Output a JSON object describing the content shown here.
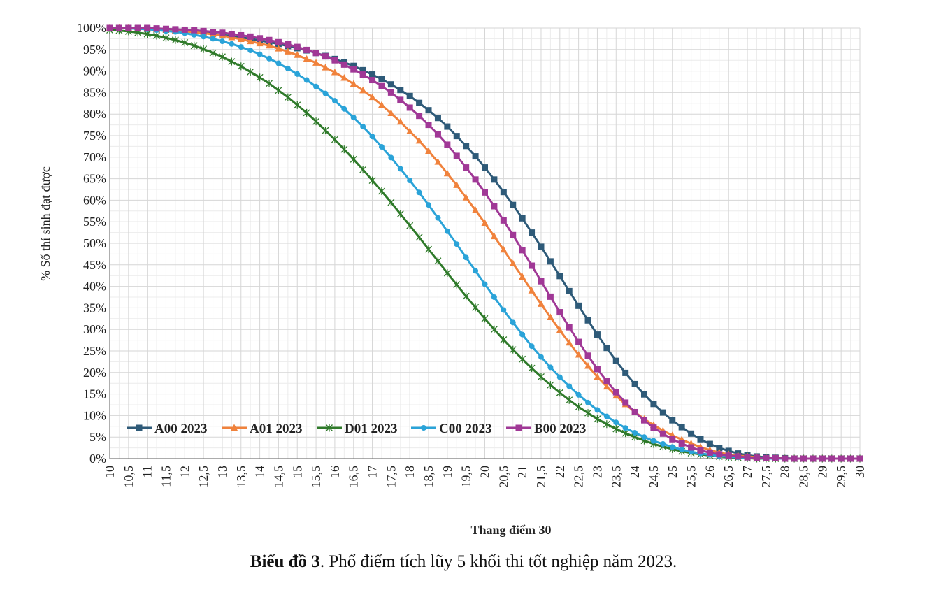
{
  "chart_data": {
    "type": "line",
    "title": "",
    "xlabel": "Thang điểm 30",
    "ylabel": "% Số thí sinh đạt được",
    "x": [
      10,
      10.25,
      10.5,
      10.75,
      11,
      11.25,
      11.5,
      11.75,
      12,
      12.25,
      12.5,
      12.75,
      13,
      13.25,
      13.5,
      13.75,
      14,
      14.25,
      14.5,
      14.75,
      15,
      15.25,
      15.5,
      15.75,
      16,
      16.25,
      16.5,
      16.75,
      17,
      17.25,
      17.5,
      17.75,
      18,
      18.25,
      18.5,
      18.75,
      19,
      19.25,
      19.5,
      19.75,
      20,
      20.25,
      20.5,
      20.75,
      21,
      21.25,
      21.5,
      21.75,
      22,
      22.25,
      22.5,
      22.75,
      23,
      23.25,
      23.5,
      23.75,
      24,
      24.25,
      24.5,
      24.75,
      25,
      25.25,
      25.5,
      25.75,
      26,
      26.25,
      26.5,
      26.75,
      27,
      27.25,
      27.5,
      27.75,
      28,
      28.25,
      28.5,
      28.75,
      29,
      29.25,
      29.5,
      29.75,
      30
    ],
    "x_tick_labels": [
      "10",
      "10,5",
      "11",
      "11,5",
      "12",
      "12,5",
      "13",
      "13,5",
      "14",
      "14,5",
      "15",
      "15,5",
      "16",
      "16,5",
      "17",
      "17,5",
      "18",
      "18,5",
      "19",
      "19,5",
      "20",
      "20,5",
      "21",
      "21,5",
      "22",
      "22,5",
      "23",
      "23,5",
      "24",
      "24,5",
      "25",
      "25,5",
      "26",
      "26,5",
      "27",
      "27,5",
      "28",
      "28,5",
      "29",
      "29,5",
      "30"
    ],
    "y_tick_labels": [
      "0%",
      "5%",
      "10%",
      "15%",
      "20%",
      "25%",
      "30%",
      "35%",
      "40%",
      "45%",
      "50%",
      "55%",
      "60%",
      "65%",
      "70%",
      "75%",
      "80%",
      "85%",
      "90%",
      "95%",
      "100%"
    ],
    "xlim": [
      10,
      30
    ],
    "ylim": [
      0,
      100
    ],
    "grid": true,
    "legend_position": "bottom-left",
    "series": [
      {
        "name": "A00 2023",
        "color": "#2e5a78",
        "marker": "square",
        "values": [
          100,
          100,
          100,
          99.9,
          99.8,
          99.7,
          99.6,
          99.4,
          99.3,
          99.1,
          98.9,
          98.6,
          98.4,
          98.1,
          97.8,
          97.5,
          97.1,
          96.7,
          96.3,
          95.8,
          95.3,
          94.8,
          94.2,
          93.5,
          92.8,
          92.0,
          91.2,
          90.2,
          89.2,
          88.1,
          86.9,
          85.6,
          84.2,
          82.6,
          80.9,
          79.1,
          77.1,
          74.9,
          72.6,
          70.2,
          67.6,
          64.8,
          61.9,
          58.9,
          55.8,
          52.5,
          49.2,
          45.8,
          42.4,
          38.9,
          35.5,
          32.1,
          28.8,
          25.7,
          22.7,
          19.9,
          17.3,
          14.9,
          12.7,
          10.7,
          8.9,
          7.3,
          5.8,
          4.5,
          3.4,
          2.5,
          1.8,
          1.2,
          0.8,
          0.5,
          0.3,
          0.2,
          0.1,
          0,
          0,
          0,
          0,
          0,
          0,
          0,
          0
        ]
      },
      {
        "name": "A01 2023",
        "color": "#f0823c",
        "marker": "triangle",
        "values": [
          100,
          100,
          100,
          99.9,
          99.8,
          99.7,
          99.6,
          99.4,
          99.2,
          99.0,
          98.8,
          98.5,
          98.2,
          97.8,
          97.4,
          96.9,
          96.4,
          95.9,
          95.2,
          94.5,
          93.7,
          92.8,
          91.9,
          90.8,
          89.7,
          88.4,
          87.0,
          85.5,
          83.9,
          82.1,
          80.2,
          78.2,
          76.0,
          73.8,
          71.4,
          68.9,
          66.2,
          63.5,
          60.6,
          57.7,
          54.7,
          51.6,
          48.5,
          45.3,
          42.2,
          39.0,
          35.9,
          32.8,
          29.8,
          26.9,
          24.1,
          21.5,
          19.0,
          16.7,
          14.6,
          12.6,
          10.8,
          9.2,
          7.8,
          6.5,
          5.4,
          4.4,
          3.5,
          2.7,
          2.0,
          1.4,
          1.0,
          0.7,
          0.5,
          0.3,
          0.2,
          0.1,
          0,
          0,
          0,
          0,
          0,
          0,
          0,
          0,
          0
        ]
      },
      {
        "name": "D01 2023",
        "color": "#2f7a2a",
        "marker": "star",
        "values": [
          99.5,
          99.4,
          99.2,
          98.9,
          98.6,
          98.2,
          97.7,
          97.2,
          96.6,
          95.9,
          95.1,
          94.2,
          93.3,
          92.2,
          91.1,
          89.8,
          88.5,
          87.1,
          85.5,
          83.9,
          82.1,
          80.3,
          78.3,
          76.2,
          74.1,
          71.8,
          69.5,
          67.1,
          64.6,
          62.1,
          59.5,
          56.8,
          54.1,
          51.4,
          48.6,
          45.9,
          43.1,
          40.4,
          37.7,
          35.1,
          32.5,
          30.0,
          27.6,
          25.3,
          23.1,
          21.0,
          19.0,
          17.1,
          15.3,
          13.6,
          12.0,
          10.6,
          9.2,
          8.0,
          6.9,
          5.9,
          5.0,
          4.2,
          3.4,
          2.8,
          2.2,
          1.7,
          1.3,
          1.0,
          0.7,
          0.5,
          0.3,
          0.2,
          0.1,
          0,
          0,
          0,
          0,
          0,
          0,
          0,
          0,
          0,
          0,
          0,
          0
        ]
      },
      {
        "name": "C00 2023",
        "color": "#2aa3d8",
        "marker": "circle",
        "values": [
          100,
          100,
          99.9,
          99.8,
          99.7,
          99.5,
          99.3,
          99.1,
          98.8,
          98.4,
          98.0,
          97.5,
          96.9,
          96.3,
          95.6,
          94.8,
          93.9,
          92.9,
          91.8,
          90.6,
          89.3,
          87.9,
          86.4,
          84.8,
          83.1,
          81.2,
          79.2,
          77.1,
          74.8,
          72.4,
          69.9,
          67.3,
          64.6,
          61.8,
          58.9,
          55.9,
          52.8,
          49.8,
          46.7,
          43.6,
          40.5,
          37.5,
          34.5,
          31.6,
          28.8,
          26.1,
          23.6,
          21.2,
          18.9,
          16.8,
          14.8,
          13.0,
          11.3,
          9.8,
          8.4,
          7.1,
          6.0,
          5.0,
          4.1,
          3.4,
          2.7,
          2.1,
          1.6,
          1.2,
          0.9,
          0.6,
          0.4,
          0.3,
          0.2,
          0.1,
          0,
          0,
          0,
          0,
          0,
          0,
          0,
          0,
          0,
          0,
          0
        ]
      },
      {
        "name": "B00 2023",
        "color": "#a03896",
        "marker": "square",
        "values": [
          100,
          100,
          100,
          100,
          100,
          99.9,
          99.8,
          99.7,
          99.6,
          99.5,
          99.3,
          99.1,
          98.9,
          98.6,
          98.3,
          98.0,
          97.6,
          97.2,
          96.7,
          96.2,
          95.6,
          94.9,
          94.2,
          93.4,
          92.5,
          91.5,
          90.4,
          89.2,
          87.9,
          86.5,
          85.0,
          83.3,
          81.5,
          79.6,
          77.5,
          75.3,
          72.9,
          70.3,
          67.6,
          64.8,
          61.8,
          58.6,
          55.3,
          51.9,
          48.4,
          44.8,
          41.2,
          37.6,
          34.0,
          30.5,
          27.1,
          23.9,
          20.8,
          18.0,
          15.4,
          13.0,
          10.8,
          8.9,
          7.2,
          5.8,
          4.5,
          3.5,
          2.6,
          1.9,
          1.4,
          1.0,
          0.7,
          0.5,
          0.3,
          0.2,
          0.1,
          0.1,
          0,
          0,
          0,
          0,
          0,
          0,
          0,
          0,
          0
        ]
      }
    ]
  },
  "caption": {
    "bold": "Biểu đồ 3",
    "rest": ". Phổ điểm tích lũy 5 khối thi tốt nghiệp năm 2023."
  }
}
